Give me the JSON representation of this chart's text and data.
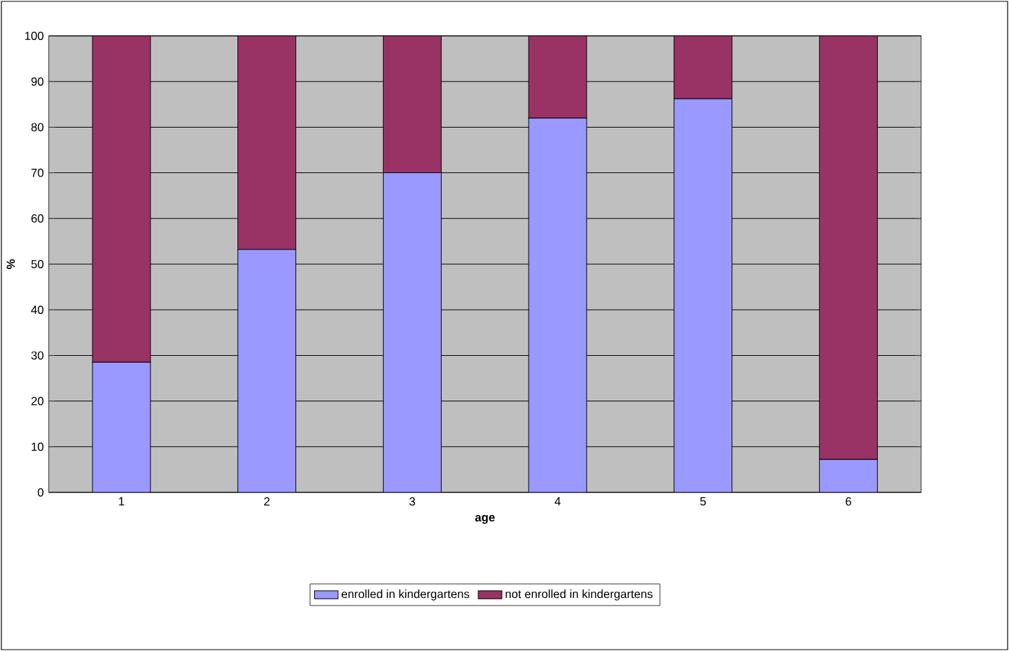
{
  "chart_data": {
    "type": "bar",
    "stacked": true,
    "xlabel": "age",
    "ylabel": "%",
    "categories": [
      "1",
      "2",
      "3",
      "4",
      "5",
      "6"
    ],
    "series": [
      {
        "name": "enrolled in kindergartens",
        "color": "#9999ff",
        "values": [
          28.5,
          53.2,
          70,
          82,
          86.2,
          7.2
        ]
      },
      {
        "name": "not enrolled in kindergartens",
        "color": "#993366",
        "values": [
          71.5,
          46.8,
          30,
          18,
          13.8,
          92.8
        ]
      }
    ],
    "ylim": [
      0,
      100
    ],
    "yticks": [
      0,
      10,
      20,
      30,
      40,
      50,
      60,
      70,
      80,
      90,
      100
    ],
    "grid": "y",
    "legend": "bottom"
  }
}
